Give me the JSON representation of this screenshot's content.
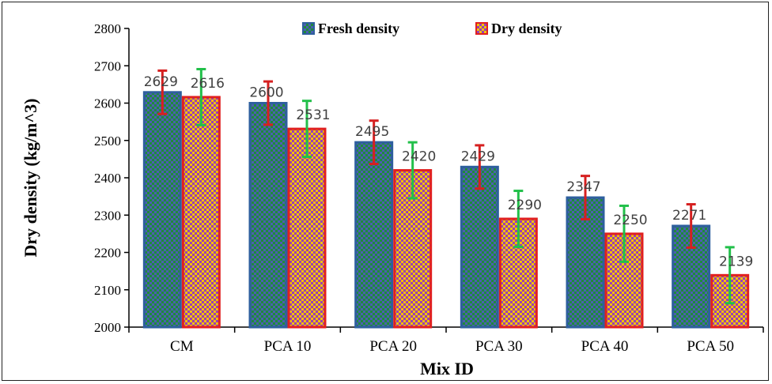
{
  "chart_data": {
    "type": "bar",
    "xlabel": "Mix ID",
    "ylabel": "Dry density (kg/m^3)",
    "categories": [
      "CM",
      "PCA 10",
      "PCA 20",
      "PCA 30",
      "PCA 40",
      "PCA 50"
    ],
    "ylim": [
      2000,
      2800
    ],
    "yticks": [
      2000,
      2100,
      2200,
      2300,
      2400,
      2500,
      2600,
      2700,
      2800
    ],
    "legend_position": "top-center",
    "grid": false,
    "series": [
      {
        "name": "Fresh density",
        "values": [
          2629,
          2600,
          2495,
          2429,
          2347,
          2271
        ],
        "error": [
          58,
          58,
          58,
          58,
          58,
          58
        ],
        "fill_color": "#1f8a3c",
        "pattern_color": "#4b5fb0",
        "border_color": "#2e5f9e",
        "error_color": "#d62020"
      },
      {
        "name": "Dry density",
        "values": [
          2616,
          2531,
          2420,
          2290,
          2250,
          2139
        ],
        "error": [
          75,
          75,
          75,
          75,
          75,
          75
        ],
        "fill_color": "#f2c200",
        "pattern_color": "#9b3fb5",
        "border_color": "#e02020",
        "error_color": "#22c04a"
      }
    ]
  }
}
